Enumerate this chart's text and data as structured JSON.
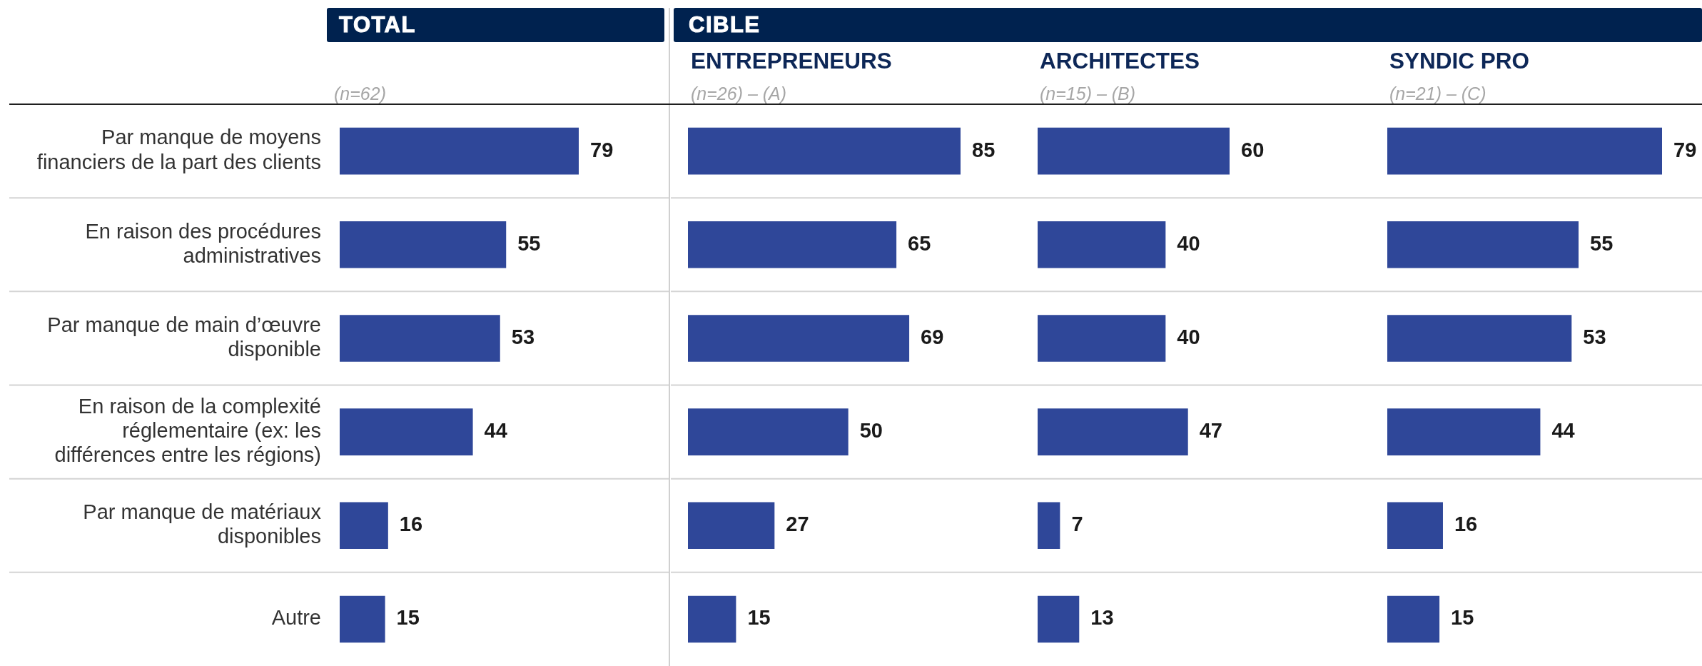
{
  "chart_data": [
    {
      "type": "bar",
      "orientation": "horizontal",
      "title": "TOTAL",
      "subtitle": "(n=62)",
      "categories": [
        "Par manque de moyens financiers de la part des clients",
        "En raison des procédures administratives",
        "Par manque de main d’œuvre disponible",
        "En raison de la complexité réglementaire (ex: les différences entre les régions)",
        "Par manque de matériaux disponibles",
        "Autre"
      ],
      "values": [
        79,
        55,
        53,
        44,
        16,
        15
      ],
      "color": "#2f4799",
      "data_labels": true,
      "grid": "y",
      "tick_labels": "y"
    },
    {
      "type": "other",
      "title": "CIBLE"
    },
    {
      "type": "bar",
      "orientation": "horizontal",
      "title": "ENTREPRENEURS",
      "subtitle": "(n=26) – (A)",
      "categories": [
        null,
        null,
        null,
        null,
        null,
        null
      ],
      "values": [
        85,
        65,
        69,
        50,
        27,
        15
      ],
      "color": "#2f4799",
      "data_labels": true,
      "grid": "y",
      "tick_labels": false
    },
    {
      "type": "bar",
      "orientation": "horizontal",
      "title": "ARCHITECTES",
      "subtitle": "(n=15) – (B)",
      "categories": [
        null,
        null,
        null,
        null,
        null,
        null
      ],
      "values": [
        60,
        40,
        40,
        47,
        7,
        13
      ],
      "color": "#2f4799",
      "data_labels": true,
      "grid": "y",
      "tick_labels": false
    },
    {
      "type": "bar",
      "orientation": "horizontal",
      "title": "SYNDIC PRO",
      "subtitle": "(n=21) – (C)",
      "categories": [
        null,
        null,
        null,
        null,
        null,
        null
      ],
      "values": [
        79,
        55,
        53,
        44,
        16,
        15
      ],
      "color": "#2f4799",
      "data_labels": true,
      "grid": "y",
      "tick_labels": false
    }
  ]
}
